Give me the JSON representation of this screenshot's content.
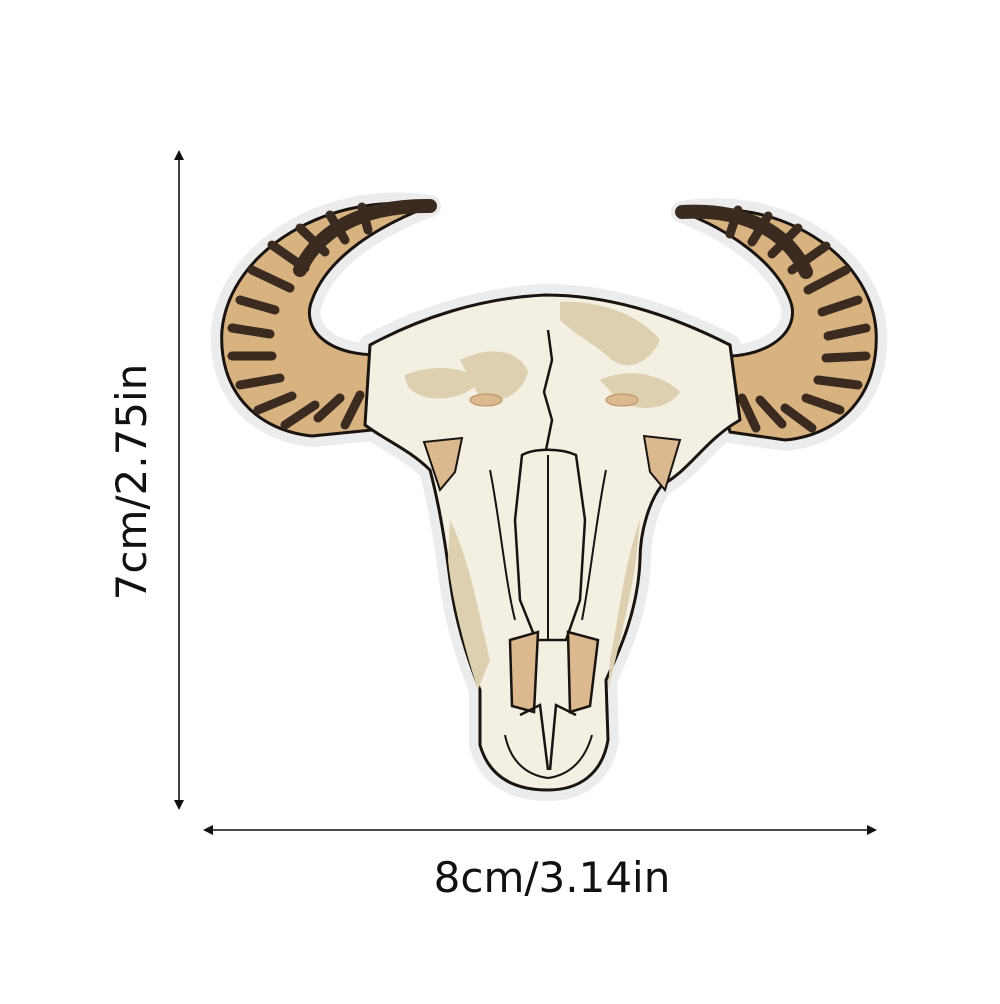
{
  "dimensions": {
    "height_label": "7cm/2.75in",
    "width_label": "8cm/3.14in"
  },
  "product": {
    "icon": "bull-skull-patch-icon"
  },
  "colors": {
    "arrow": "#111111",
    "outline": "#1a1410",
    "bone": "#f4efe3",
    "bone_shade": "#ddd0b0",
    "tan": "#dcb88e",
    "horn_light": "#d8b380",
    "horn_dark": "#3b2a1f",
    "felt_border": "#eeeeee"
  }
}
